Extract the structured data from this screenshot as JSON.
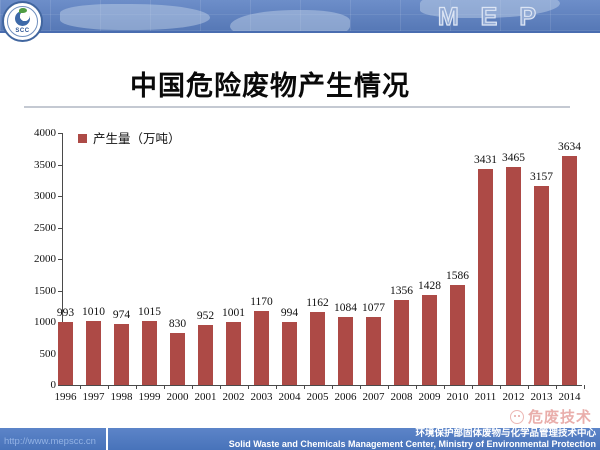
{
  "header": {
    "brand": "MEP",
    "logo_text": "SCC",
    "banner_color": "#5C7FBD"
  },
  "slide": {
    "title": "中国危险废物产生情况"
  },
  "chart_data": {
    "type": "bar",
    "title": "中国危险废物产生情况",
    "legend": "产生量（万吨）",
    "categories": [
      "1996",
      "1997",
      "1998",
      "1999",
      "2000",
      "2001",
      "2002",
      "2003",
      "2004",
      "2005",
      "2006",
      "2007",
      "2008",
      "2009",
      "2010",
      "2011",
      "2012",
      "2013",
      "2014"
    ],
    "values": [
      993,
      1010,
      974,
      1015,
      830,
      952,
      1001,
      1170,
      994,
      1162,
      1084,
      1077,
      1356,
      1428,
      1586,
      3431,
      3465,
      3157,
      3634
    ],
    "xlabel": "",
    "ylabel": "",
    "ylim": [
      0,
      4000
    ],
    "ytick_step": 500,
    "bar_color": "#AD4A46",
    "grid": false,
    "legend_position": "top-left",
    "value_labels": true
  },
  "watermark": {
    "text": "危废技术"
  },
  "footer": {
    "url": "http://www.mepscc.cn",
    "org_cn": "环境保护部固体废物与化学品管理技术中心",
    "org_en": "Solid Waste and Chemicals Management Center, Ministry of Environmental Protection"
  }
}
